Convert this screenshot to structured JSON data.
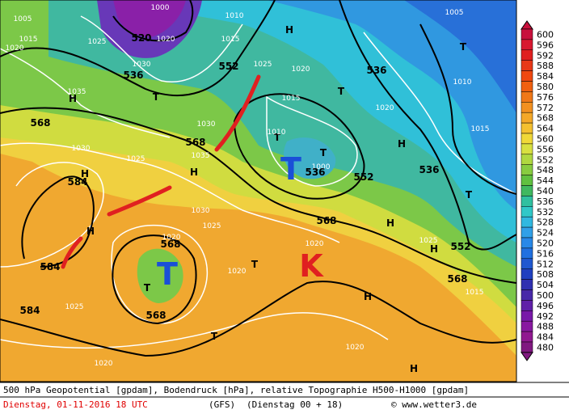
{
  "map": {
    "labels": [
      "1000",
      "1005",
      "1015",
      "1020",
      "1025",
      "520",
      "1020",
      "536",
      "1030",
      "1035",
      "H",
      "T",
      "1010",
      "1015",
      "552",
      "1025",
      "H",
      "1020",
      "536",
      "T",
      "1005",
      "1010",
      "T",
      "1015",
      "568",
      "1030",
      "568",
      "1035",
      "H",
      "1030",
      "1025",
      "1020",
      "H",
      "536",
      "1015",
      "T",
      "1000",
      "536",
      "552",
      "T",
      "584",
      "H",
      "H",
      "1030",
      "1025",
      "568",
      "H",
      "1020",
      "568",
      "1020",
      "1025",
      "552",
      "H",
      "T",
      "1020",
      "584",
      "568",
      "1015",
      "T",
      "568",
      "584",
      "1025",
      "H",
      "T",
      "1020",
      "1020",
      "H",
      "T",
      "1010"
    ],
    "big_letters": [
      "T",
      "T",
      "K"
    ]
  },
  "legend": {
    "values": [
      600,
      596,
      592,
      588,
      584,
      580,
      576,
      572,
      568,
      564,
      560,
      556,
      552,
      548,
      544,
      540,
      536,
      532,
      528,
      524,
      520,
      516,
      512,
      508,
      504,
      500,
      496,
      492,
      488,
      484,
      480
    ],
    "colors": [
      "#c8103c",
      "#d81830",
      "#e02020",
      "#e83818",
      "#f04810",
      "#f06010",
      "#f07818",
      "#f29020",
      "#f4a828",
      "#f4c030",
      "#f0d838",
      "#d8e040",
      "#b0d840",
      "#88cc40",
      "#60c040",
      "#40b860",
      "#30c0a0",
      "#30c8c8",
      "#30b8e0",
      "#30a0e8",
      "#2888e8",
      "#2070e0",
      "#2058d0",
      "#2040c0",
      "#3030b0",
      "#4828a8",
      "#6020a8",
      "#7818a8",
      "#8818a0",
      "#901890",
      "#801880"
    ]
  },
  "footer": {
    "line1": "500 hPa Geopotential [gpdam], Bodendruck [hPa], relative Topographie H500-H1000 [gpdam]",
    "date": "Dienstag, 01-11-2016  18 UTC",
    "model": "(GFS)",
    "run": "(Dienstag 00 + 18)",
    "credit": "© www.wetter3.de"
  }
}
